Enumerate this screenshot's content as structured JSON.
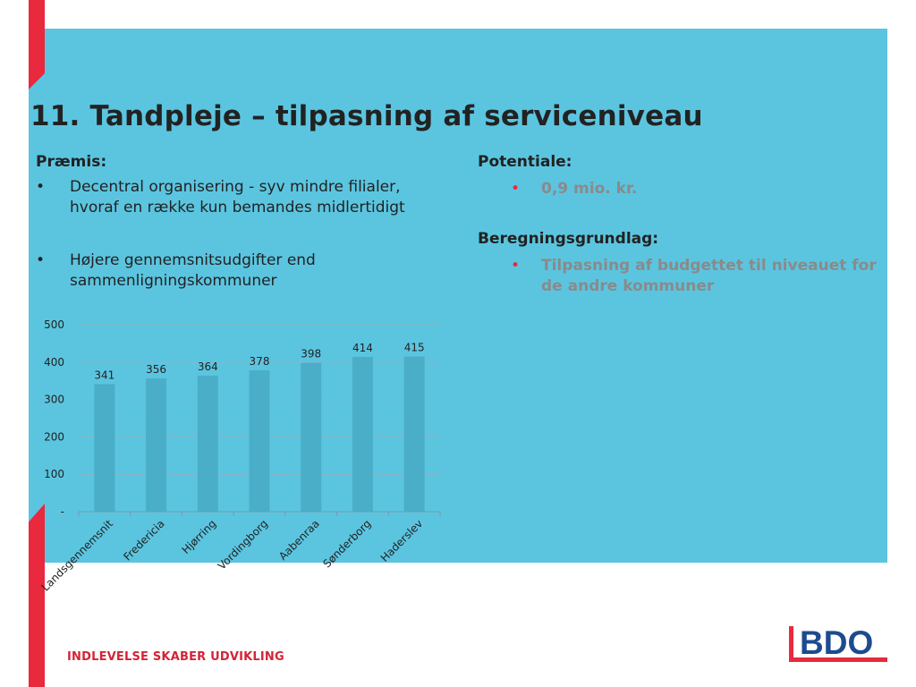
{
  "title": "11. Tandpleje – tilpasning af serviceniveau",
  "left": {
    "heading": "Præmis:",
    "bullets": [
      "Decentral organisering - syv mindre filialer, hvoraf en række kun bemandes midlertidigt",
      "Højere gennemsnitsudgifter end sammenligningskommuner"
    ],
    "bullet_symbol": "•"
  },
  "right": {
    "potential_heading": "Potentiale:",
    "potential_bullet": "0,9 mio. kr.",
    "basis_heading": "Beregningsgrundlag:",
    "basis_bullet": "Tilpasning af budgettet til niveauet for de andre kommuner"
  },
  "chart_data": {
    "type": "bar",
    "categories": [
      "Landsgennemsnit",
      "Fredericia",
      "Hjørring",
      "Vordingborg",
      "Aabenraa",
      "Sønderborg",
      "Haderslev"
    ],
    "values": [
      341,
      356,
      364,
      378,
      398,
      414,
      415
    ],
    "ylim": [
      0,
      500
    ],
    "yticks": [
      "-",
      "100",
      "200",
      "300",
      "400",
      "500"
    ],
    "grid": true,
    "bar_color": "#4aaec8"
  },
  "footer": "INDLEVELSE SKABER UDVIKLING",
  "logo": {
    "text": "BDO",
    "color": "#1d4b8f",
    "accent": "#e8293e"
  },
  "colors": {
    "panel": "#5bc5e0",
    "accent_red": "#e8293e"
  }
}
